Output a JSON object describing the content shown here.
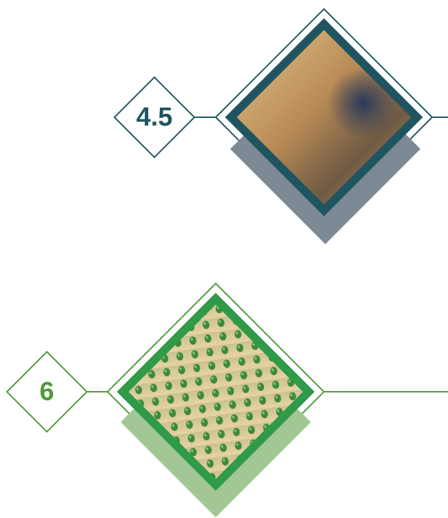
{
  "items": [
    {
      "label": "4.5"
    },
    {
      "label": "6"
    }
  ]
}
